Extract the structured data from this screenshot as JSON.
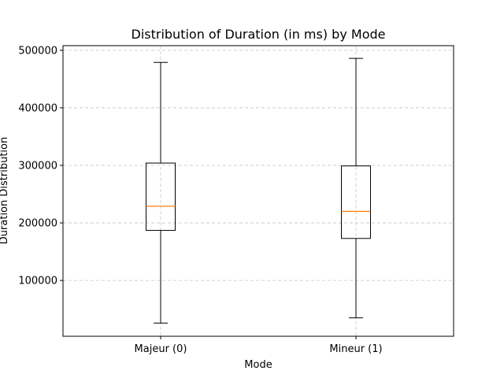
{
  "chart_data": {
    "type": "box",
    "title": "Distribution of Duration (in ms) by Mode",
    "xlabel": "Mode",
    "ylabel": "Duration Distribution",
    "categories": [
      "Majeur (0)",
      "Mineur (1)"
    ],
    "boxes": [
      {
        "category": "Majeur (0)",
        "whisker_low": 26000,
        "q1": 187000,
        "median": 229000,
        "q3": 304000,
        "whisker_high": 479000
      },
      {
        "category": "Mineur (1)",
        "whisker_low": 35000,
        "q1": 173000,
        "median": 220000,
        "q3": 299000,
        "whisker_high": 486000
      }
    ],
    "yticks": [
      100000,
      200000,
      300000,
      400000,
      500000
    ],
    "ytick_labels": [
      "100000",
      "200000",
      "300000",
      "400000",
      "500000"
    ],
    "ylim": [
      3000,
      508000
    ],
    "grid": true,
    "colors": {
      "box": "#000000",
      "median": "#ff7f0e",
      "grid": "#b0b0b0"
    }
  }
}
